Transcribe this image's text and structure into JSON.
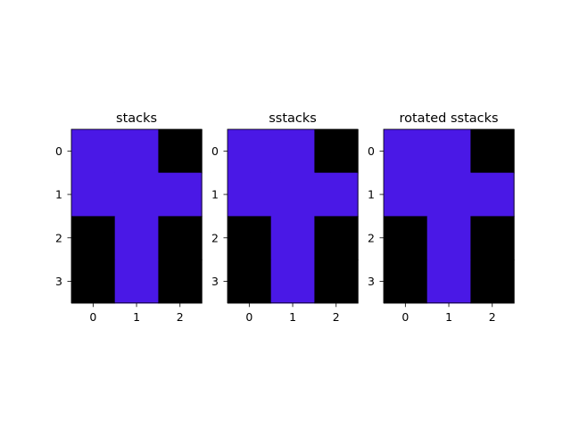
{
  "chart_data": [
    {
      "type": "heatmap",
      "title": "stacks",
      "xlabel": "",
      "ylabel": "",
      "x_ticks": [
        "0",
        "1",
        "2"
      ],
      "y_ticks": [
        "0",
        "1",
        "2",
        "3"
      ],
      "grid": [
        [
          1,
          1,
          0
        ],
        [
          1,
          1,
          1
        ],
        [
          0,
          1,
          0
        ],
        [
          0,
          1,
          0
        ]
      ],
      "colors": {
        "0": "#000000",
        "1": "#4a18e6"
      }
    },
    {
      "type": "heatmap",
      "title": "sstacks",
      "xlabel": "",
      "ylabel": "",
      "x_ticks": [
        "0",
        "1",
        "2"
      ],
      "y_ticks": [
        "0",
        "1",
        "2",
        "3"
      ],
      "grid": [
        [
          1,
          1,
          0
        ],
        [
          1,
          1,
          1
        ],
        [
          0,
          1,
          0
        ],
        [
          0,
          1,
          0
        ]
      ],
      "colors": {
        "0": "#000000",
        "1": "#4a18e6"
      }
    },
    {
      "type": "heatmap",
      "title": "rotated sstacks",
      "xlabel": "",
      "ylabel": "",
      "x_ticks": [
        "0",
        "1",
        "2"
      ],
      "y_ticks": [
        "0",
        "1",
        "2",
        "3"
      ],
      "grid": [
        [
          1,
          1,
          0
        ],
        [
          1,
          1,
          1
        ],
        [
          0,
          1,
          0
        ],
        [
          0,
          1,
          0
        ]
      ],
      "colors": {
        "0": "#000000",
        "1": "#4a18e6"
      }
    }
  ]
}
